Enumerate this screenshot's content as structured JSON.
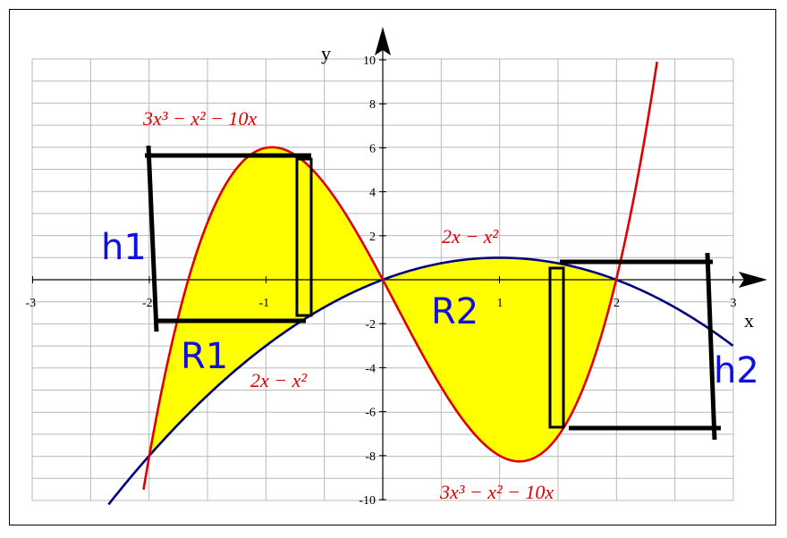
{
  "axes": {
    "x_label": "x",
    "y_label": "y",
    "x_ticks": [
      "-3",
      "-2",
      "-1",
      "1",
      "2",
      "3"
    ],
    "y_ticks": [
      "10",
      "8",
      "6",
      "4",
      "2",
      "-2",
      "-4",
      "-6",
      "-8",
      "-10"
    ],
    "xlim": [
      -3,
      3
    ],
    "ylim": [
      -10,
      10
    ]
  },
  "curves": {
    "cubic": {
      "label_top": "3x³ − x² − 10x",
      "label_bottom": "3x³ − x² − 10x",
      "color": "#e00000"
    },
    "parabola": {
      "label_top": "2x − x²",
      "label_bottom": "2x − x²",
      "color": "#000080"
    }
  },
  "regions": {
    "r1": "R1",
    "r2": "R2",
    "fill_color": "#ffff00"
  },
  "heights": {
    "h1": "h1",
    "h2": "h2"
  }
}
